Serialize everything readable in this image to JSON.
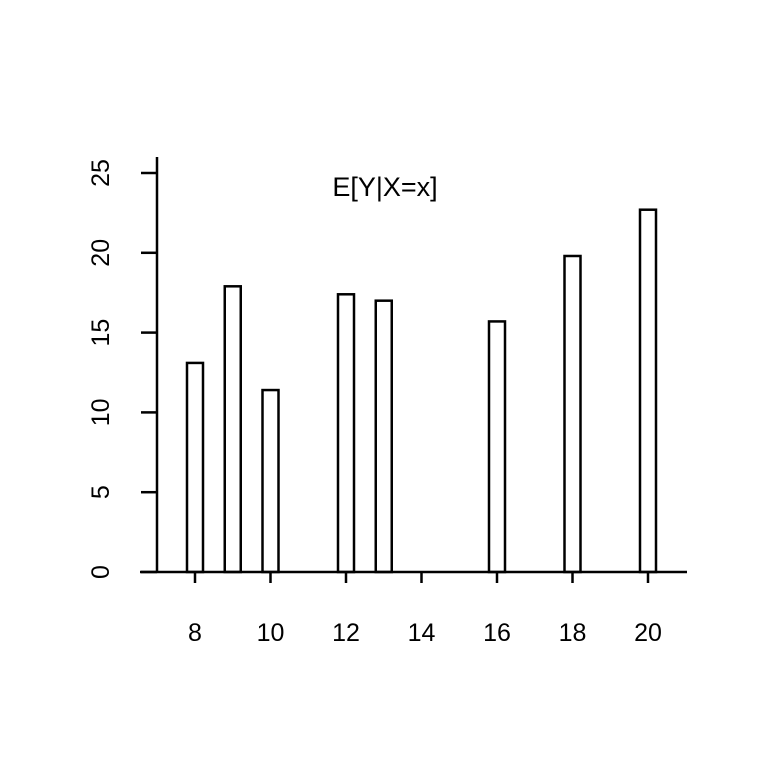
{
  "chart_data": {
    "type": "bar",
    "title": "E[Y|X=x]",
    "xlabel": "",
    "ylabel": "",
    "x": [
      8,
      9,
      10,
      12,
      13,
      16,
      18,
      20
    ],
    "values": [
      13.1,
      17.9,
      11.4,
      17.4,
      17.0,
      15.7,
      19.8,
      22.7
    ],
    "xlim": [
      7,
      21
    ],
    "ylim": [
      0,
      25
    ],
    "x_ticks": [
      8,
      10,
      12,
      14,
      16,
      18,
      20
    ],
    "y_ticks": [
      0,
      5,
      10,
      15,
      20,
      25
    ],
    "x_tick_labels": [
      "8",
      "10",
      "12",
      "14",
      "16",
      "18",
      "20"
    ],
    "y_tick_labels": [
      "0",
      "5",
      "10",
      "15",
      "20",
      "25"
    ],
    "grid": false,
    "legend": "none",
    "colors": {
      "bar_fill": "#ffffff",
      "bar_stroke": "#000000",
      "axis": "#000000"
    }
  }
}
